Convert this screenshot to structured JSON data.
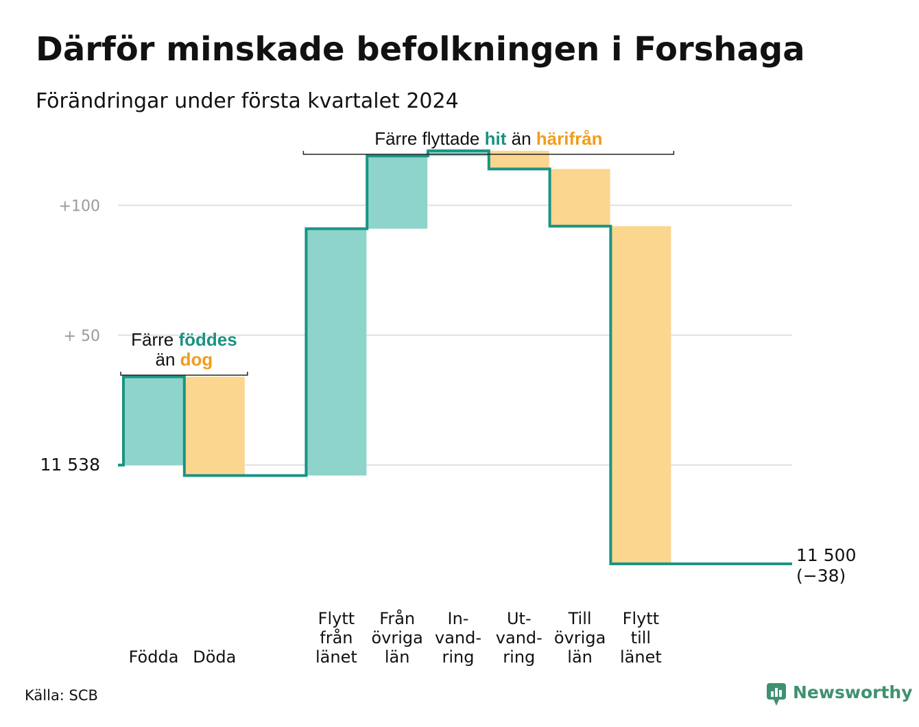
{
  "title": "Därför minskade befolkningen i Forshaga",
  "subtitle": "Förändringar under första kvartalet 2024",
  "source": "Källa: SCB",
  "brand": {
    "name": "Newsworthy",
    "icon": "newsworthy-logo-icon"
  },
  "colors": {
    "increase": "#8ed4cb",
    "decrease": "#fbd68f",
    "line": "#1a9383",
    "teal_text": "#1a9383",
    "orange_text": "#f39c1a",
    "grid": "#e0e0e0"
  },
  "chart_data": {
    "type": "waterfall",
    "start": {
      "value": 11538,
      "label": "11  538"
    },
    "end": {
      "value": 11500,
      "label": "11 500",
      "change_label": "(−38)"
    },
    "y_ticks": [
      {
        "value": 11538,
        "label": "11  538",
        "dark": true
      },
      {
        "value": 11588,
        "label": "+  50",
        "dark": false
      },
      {
        "value": 11638,
        "label": "+100",
        "dark": false
      }
    ],
    "ylim": [
      11490,
      11655
    ],
    "steps": [
      {
        "category": [
          "Födda"
        ],
        "change": 34,
        "kind": "increase"
      },
      {
        "category": [
          "Döda"
        ],
        "change": -38,
        "kind": "decrease"
      },
      {
        "category": [],
        "change": 0,
        "kind": "gap"
      },
      {
        "category": [
          "Flytt",
          "från",
          "länet"
        ],
        "change": 95,
        "kind": "increase"
      },
      {
        "category": [
          "Från",
          "övriga",
          "län"
        ],
        "change": 28,
        "kind": "increase"
      },
      {
        "category": [
          "In-",
          "vand-",
          "ring"
        ],
        "change": 2,
        "kind": "increase"
      },
      {
        "category": [
          "Ut-",
          "vand-",
          "ring"
        ],
        "change": -7,
        "kind": "decrease"
      },
      {
        "category": [
          "Till",
          "övriga",
          "län"
        ],
        "change": -22,
        "kind": "decrease"
      },
      {
        "category": [
          "Flytt",
          "till",
          "länet"
        ],
        "change": -130,
        "kind": "decrease"
      }
    ],
    "annotations": [
      {
        "lines": [
          [
            {
              "text": "Färre ",
              "style": "plain"
            },
            {
              "text": "föddes",
              "style": "teal"
            }
          ],
          [
            {
              "text": "än ",
              "style": "plain"
            },
            {
              "text": "dog",
              "style": "orange"
            }
          ]
        ],
        "span": [
          0,
          1
        ]
      },
      {
        "lines": [
          [
            {
              "text": "Färre flyttade ",
              "style": "plain"
            },
            {
              "text": "hit",
              "style": "teal"
            },
            {
              "text": " än ",
              "style": "plain"
            },
            {
              "text": "härifrån",
              "style": "orange"
            }
          ]
        ],
        "span": [
          3,
          8
        ]
      }
    ]
  }
}
